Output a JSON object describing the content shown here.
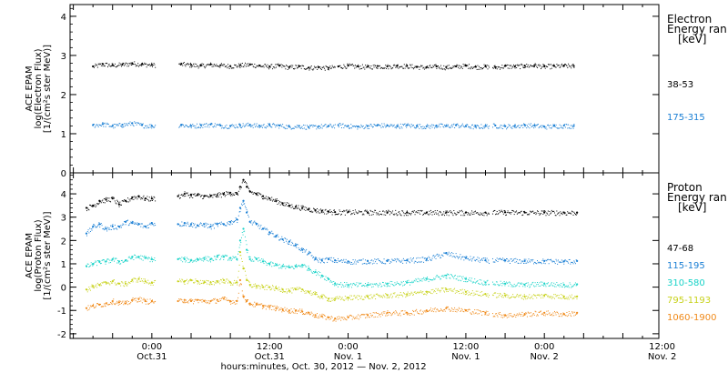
{
  "chart_data": [
    {
      "type": "scatter",
      "panel": "electron",
      "ylabel": [
        "ACE EPAM",
        "log(Electron Flux)",
        "[1/(cm²s ster MeV)]"
      ],
      "ylim": [
        0,
        4.3
      ],
      "yticks": [
        0,
        1,
        2,
        3,
        4
      ],
      "legend_title": [
        "Electron",
        "Energy ran",
        "[keV]"
      ],
      "series": [
        {
          "name": "38-53",
          "color": "#000000",
          "x": [
            -18,
            -15,
            -12,
            -9,
            -6,
            -3,
            0,
            9,
            12,
            15,
            18,
            21,
            24,
            27,
            30,
            33,
            36,
            39,
            42,
            45,
            48,
            51,
            54,
            57,
            60,
            63,
            66,
            69,
            72,
            75,
            78,
            81,
            84,
            87,
            90,
            93,
            96,
            99,
            102,
            105,
            108,
            111,
            114,
            117,
            120,
            123,
            126,
            129
          ],
          "y": [
            2.72,
            2.78,
            2.75,
            2.77,
            2.8,
            2.78,
            2.76,
            2.78,
            2.76,
            2.74,
            2.77,
            2.75,
            2.73,
            2.75,
            2.77,
            2.74,
            2.72,
            2.74,
            2.7,
            2.72,
            2.69,
            2.7,
            2.68,
            2.72,
            2.74,
            2.72,
            2.71,
            2.73,
            2.72,
            2.74,
            2.73,
            2.71,
            2.7,
            2.72,
            2.7,
            2.72,
            2.74,
            2.71,
            2.72,
            2.7,
            2.73,
            2.72,
            2.74,
            2.75,
            2.72,
            2.73,
            2.74,
            2.73
          ]
        },
        {
          "name": "175-315",
          "color": "#1a7fd4",
          "x": [
            -18,
            -15,
            -12,
            -9,
            -6,
            -3,
            0,
            9,
            12,
            15,
            18,
            21,
            24,
            27,
            30,
            33,
            36,
            39,
            42,
            45,
            48,
            51,
            54,
            57,
            60,
            63,
            66,
            69,
            72,
            75,
            78,
            81,
            84,
            87,
            90,
            93,
            96,
            99,
            102,
            105,
            108,
            111,
            114,
            117,
            120,
            123,
            126,
            129
          ],
          "y": [
            1.22,
            1.25,
            1.2,
            1.23,
            1.27,
            1.22,
            1.2,
            1.23,
            1.2,
            1.22,
            1.24,
            1.21,
            1.2,
            1.22,
            1.23,
            1.2,
            1.22,
            1.21,
            1.18,
            1.2,
            1.17,
            1.19,
            1.2,
            1.22,
            1.2,
            1.18,
            1.2,
            1.22,
            1.21,
            1.2,
            1.22,
            1.2,
            1.19,
            1.21,
            1.2,
            1.22,
            1.2,
            1.18,
            1.2,
            1.21,
            1.19,
            1.2,
            1.22,
            1.21,
            1.18,
            1.2,
            1.21,
            1.2
          ]
        }
      ],
      "gaps": [
        [
          1,
          8
        ],
        [
          56,
          57
        ],
        [
          103,
          104
        ]
      ]
    },
    {
      "type": "scatter",
      "panel": "proton",
      "ylabel": [
        "ACE EPAM",
        "log(Proton Flux)",
        "[1/(cm²s ster MeV)]"
      ],
      "ylim": [
        -2.2,
        4.9
      ],
      "yticks": [
        -2,
        -1,
        0,
        1,
        2,
        3,
        4
      ],
      "legend_title": [
        "Proton",
        "Energy ran",
        "[keV]"
      ],
      "series": [
        {
          "name": "47-68",
          "color": "#000000",
          "x": [
            -20,
            -18,
            -16,
            -14,
            -12,
            -10,
            -8,
            -6,
            -4,
            -2,
            0,
            8,
            10,
            12,
            14,
            16,
            18,
            20,
            22,
            24,
            26,
            27,
            28,
            29,
            30,
            32,
            34,
            36,
            38,
            40,
            42,
            44,
            46,
            48,
            50,
            52,
            54,
            56,
            60,
            66,
            72,
            78,
            84,
            90,
            96,
            102,
            108,
            114,
            120,
            126,
            130
          ],
          "y": [
            3.4,
            3.5,
            3.7,
            3.75,
            3.8,
            3.55,
            3.7,
            3.85,
            3.9,
            3.8,
            3.8,
            3.9,
            4.0,
            3.95,
            3.95,
            3.9,
            3.9,
            3.95,
            4.0,
            4.05,
            4.0,
            4.3,
            4.6,
            4.3,
            4.1,
            4.0,
            3.9,
            3.8,
            3.7,
            3.6,
            3.5,
            3.45,
            3.4,
            3.35,
            3.3,
            3.27,
            3.25,
            3.22,
            3.22,
            3.21,
            3.21,
            3.2,
            3.2,
            3.2,
            3.2,
            3.2,
            3.21,
            3.2,
            3.2,
            3.2,
            3.2
          ]
        },
        {
          "name": "115-195",
          "color": "#1a7fd4",
          "x": [
            -20,
            -18,
            -16,
            -14,
            -12,
            -10,
            -8,
            -6,
            -4,
            -2,
            0,
            8,
            10,
            12,
            14,
            16,
            18,
            20,
            22,
            24,
            26,
            27,
            28,
            29,
            30,
            32,
            34,
            36,
            38,
            40,
            42,
            44,
            46,
            48,
            50,
            52,
            54,
            56,
            60,
            66,
            72,
            78,
            84,
            90,
            96,
            102,
            108,
            114,
            120,
            126,
            130
          ],
          "y": [
            2.3,
            2.6,
            2.7,
            2.5,
            2.6,
            2.6,
            2.8,
            2.75,
            2.7,
            2.6,
            2.75,
            2.7,
            2.75,
            2.7,
            2.65,
            2.7,
            2.6,
            2.7,
            2.7,
            2.8,
            2.9,
            3.4,
            3.7,
            3.2,
            2.8,
            2.7,
            2.5,
            2.35,
            2.2,
            2.05,
            1.95,
            1.8,
            1.6,
            1.45,
            1.2,
            1.15,
            1.2,
            1.15,
            1.1,
            1.12,
            1.12,
            1.15,
            1.2,
            1.45,
            1.25,
            1.15,
            1.15,
            1.12,
            1.12,
            1.1,
            1.12
          ]
        },
        {
          "name": "310-580",
          "color": "#19d3c8",
          "x": [
            -20,
            -18,
            -16,
            -14,
            -12,
            -10,
            -8,
            -6,
            -4,
            -2,
            0,
            8,
            10,
            12,
            14,
            16,
            18,
            20,
            22,
            24,
            26,
            27,
            28,
            29,
            30,
            32,
            34,
            36,
            38,
            40,
            42,
            44,
            46,
            48,
            50,
            52,
            54,
            56,
            60,
            66,
            72,
            78,
            84,
            90,
            96,
            102,
            108,
            114,
            120,
            126,
            130
          ],
          "y": [
            0.9,
            1.0,
            1.1,
            1.1,
            1.2,
            1.1,
            1.15,
            1.3,
            1.3,
            1.25,
            1.2,
            1.2,
            1.2,
            1.15,
            1.2,
            1.25,
            1.2,
            1.3,
            1.3,
            1.25,
            1.2,
            2.0,
            2.5,
            1.6,
            1.2,
            1.2,
            1.1,
            1.0,
            0.95,
            0.9,
            0.85,
            0.9,
            0.95,
            0.8,
            0.65,
            0.5,
            0.35,
            0.15,
            0.1,
            0.1,
            0.15,
            0.2,
            0.35,
            0.5,
            0.35,
            0.2,
            0.15,
            0.1,
            0.15,
            0.1,
            0.12
          ]
        },
        {
          "name": "795-1193",
          "color": "#c8d21c",
          "x": [
            -20,
            -18,
            -16,
            -14,
            -12,
            -10,
            -8,
            -6,
            -4,
            -2,
            0,
            8,
            10,
            12,
            14,
            16,
            18,
            20,
            22,
            24,
            26,
            27,
            28,
            29,
            30,
            32,
            34,
            36,
            38,
            40,
            42,
            44,
            46,
            48,
            50,
            52,
            54,
            56,
            60,
            66,
            72,
            78,
            84,
            90,
            96,
            102,
            108,
            114,
            120,
            126,
            130
          ],
          "y": [
            -0.1,
            0.05,
            0.1,
            0.2,
            0.25,
            0.15,
            0.15,
            0.3,
            0.35,
            0.25,
            0.2,
            0.25,
            0.25,
            0.3,
            0.25,
            0.2,
            0.2,
            0.25,
            0.3,
            0.2,
            0.2,
            1.5,
            0.8,
            0.3,
            0.1,
            0.05,
            0.0,
            0.0,
            -0.05,
            -0.1,
            -0.15,
            -0.1,
            -0.1,
            -0.2,
            -0.3,
            -0.4,
            -0.5,
            -0.5,
            -0.45,
            -0.4,
            -0.35,
            -0.3,
            -0.2,
            -0.1,
            -0.2,
            -0.3,
            -0.35,
            -0.4,
            -0.35,
            -0.4,
            -0.4
          ]
        },
        {
          "name": "1060-1900",
          "color": "#f08a1a",
          "x": [
            -20,
            -18,
            -16,
            -14,
            -12,
            -10,
            -8,
            -6,
            -4,
            -2,
            0,
            8,
            10,
            12,
            14,
            16,
            18,
            20,
            22,
            24,
            26,
            27,
            28,
            29,
            30,
            32,
            34,
            36,
            38,
            40,
            42,
            44,
            46,
            48,
            50,
            52,
            54,
            56,
            60,
            66,
            72,
            78,
            84,
            90,
            96,
            102,
            108,
            114,
            120,
            126,
            130
          ],
          "y": [
            -0.9,
            -0.8,
            -0.75,
            -0.7,
            -0.6,
            -0.65,
            -0.7,
            -0.55,
            -0.5,
            -0.6,
            -0.6,
            -0.6,
            -0.55,
            -0.6,
            -0.55,
            -0.6,
            -0.6,
            -0.55,
            -0.5,
            -0.6,
            -0.6,
            0.3,
            -0.4,
            -0.6,
            -0.7,
            -0.75,
            -0.8,
            -0.85,
            -0.9,
            -0.95,
            -1.0,
            -1.0,
            -1.05,
            -1.1,
            -1.2,
            -1.25,
            -1.3,
            -1.35,
            -1.3,
            -1.2,
            -1.1,
            -1.1,
            -1.0,
            -0.9,
            -1.0,
            -1.1,
            -1.2,
            -1.15,
            -1.1,
            -1.15,
            -1.1
          ]
        }
      ],
      "gaps": [
        [
          1,
          8
        ],
        [
          103,
          104
        ]
      ]
    }
  ],
  "x_axis": {
    "xlim": [
      -25,
      155
    ],
    "xlabel": "hours:minutes, Oct. 30, 2012 — Nov. 2, 2012",
    "major_ticks": [
      {
        "x": 0,
        "label": "0:00",
        "date": "Oct.31"
      },
      {
        "x": 36,
        "label": "12:00",
        "date": "Oct.31"
      },
      {
        "x": 60,
        "label": "0:00",
        "date": "Nov. 1"
      },
      {
        "x": 96,
        "label": "12:00",
        "date": "Nov. 1"
      },
      {
        "x": 120,
        "label": "0:00",
        "date": "Nov. 2"
      },
      {
        "x": 156,
        "label": "12:00",
        "date": "Nov. 2"
      }
    ]
  }
}
